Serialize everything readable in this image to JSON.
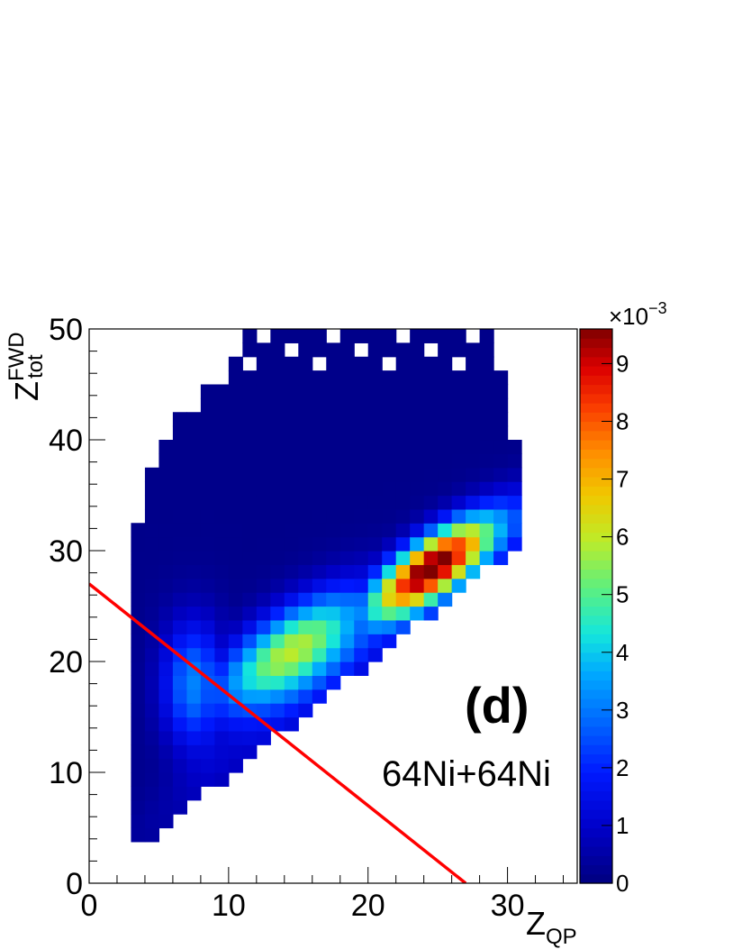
{
  "chart_data": {
    "type": "heatmap",
    "xlabel": {
      "main": "Z",
      "sub": "QP"
    },
    "ylabel": {
      "main": "Z",
      "sup": "FWD",
      "sub": "tot"
    },
    "xlim": [
      0,
      35
    ],
    "ylim": [
      0,
      50
    ],
    "x_ticks": [
      "0",
      "10",
      "20",
      "30"
    ],
    "y_ticks": [
      "0",
      "10",
      "20",
      "30",
      "40",
      "50"
    ],
    "colorbar": {
      "range": [
        0,
        9.6
      ],
      "ticks": [
        "0",
        "1",
        "2",
        "3",
        "4",
        "5",
        "6",
        "7",
        "8",
        "9"
      ],
      "multiplier": {
        "base": "×10",
        "exp": "−3"
      }
    },
    "annotations": {
      "panel_label": "(d)",
      "system": "64Ni+64Ni"
    },
    "cut_line": {
      "points": [
        [
          0,
          27
        ],
        [
          27,
          0
        ]
      ],
      "color": "#ff0000"
    },
    "approx_distribution": {
      "peak_x": 24.5,
      "peak_y": 28.5,
      "peak_value": 9.5,
      "secondary_peak_x": 14.5,
      "secondary_peak_y": 21,
      "secondary_value": 5.7,
      "x_min": 3,
      "x_max": 31,
      "lower_edge": "y ≈ x, from (3,3) to (28,28)",
      "upper_edge_y": 50,
      "bin_width_x": 1,
      "bin_width_y": 1.25
    },
    "colors": {
      "palette": [
        "#00007f",
        "#0000c8",
        "#0014ff",
        "#0064ff",
        "#00b4ff",
        "#14ffe6",
        "#64ff96",
        "#b4ff46",
        "#ffe600",
        "#ff9600",
        "#ff4600",
        "#e60000",
        "#7f0000"
      ],
      "cut_line": "#ff0000"
    }
  }
}
